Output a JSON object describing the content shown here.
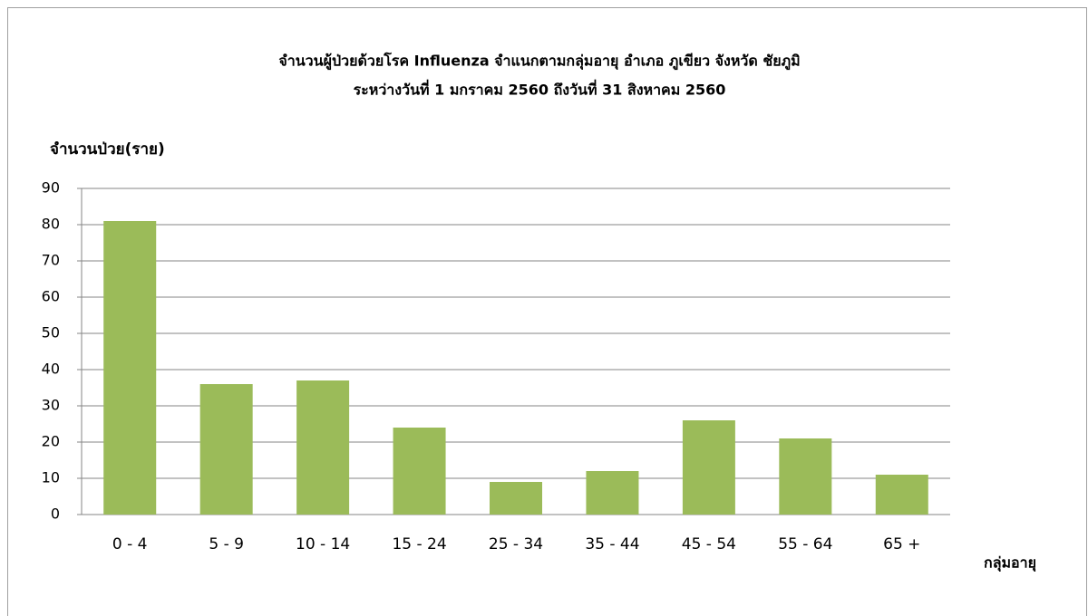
{
  "chart_data": {
    "type": "bar",
    "title": "จำนวนผู้ป่วยด้วยโรค Influenza  จำแนกตามกลุ่มอายุ    อำเภอ  ภูเขียว จังหวัด ชัยภูมิ",
    "subtitle": "ระหว่างวันที่  1 มกราคม 2560  ถึงวันที่  31 สิงหาคม 2560",
    "y_label": "จำนวนป่วย(ราย)",
    "x_label": "กลุ่มอายุ",
    "categories": [
      "0 - 4",
      "5 - 9",
      "10 - 14",
      "15 - 24",
      "25 - 34",
      "35 - 44",
      "45 - 54",
      "55 - 64",
      "65 +"
    ],
    "values": [
      81,
      36,
      37,
      24,
      9,
      12,
      26,
      21,
      11
    ],
    "color": "#9bbb59",
    "ylim": [
      0,
      90
    ],
    "yticks": [
      0,
      10,
      20,
      30,
      40,
      50,
      60,
      70,
      80,
      90
    ],
    "grid": true
  }
}
